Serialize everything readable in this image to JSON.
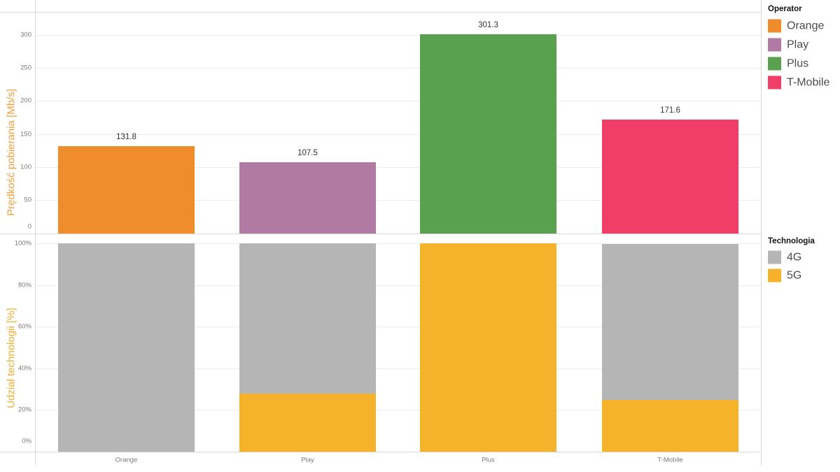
{
  "chart_data": [
    {
      "type": "bar",
      "panel": "top",
      "ylabel": "Prędkość pobierania [Mb/s]",
      "ylabel_color": "#f2a03c",
      "categories": [
        "Orange",
        "Play",
        "Plus",
        "T-Mobile"
      ],
      "values": [
        131.8,
        107.5,
        301.3,
        171.6
      ],
      "value_labels": [
        "131.8",
        "107.5",
        "301.3",
        "171.6"
      ],
      "bar_colors": [
        "#ef8c2c",
        "#b07aa2",
        "#59a14f",
        "#f13e68"
      ],
      "ylim": [
        0,
        300
      ],
      "ytick_values": [
        0,
        50,
        100,
        150,
        200,
        250,
        300
      ],
      "ytick_labels": [
        "0",
        "50",
        "100",
        "150",
        "200",
        "250",
        "300"
      ],
      "grid": true,
      "legend_position": "right"
    },
    {
      "type": "stacked-bar",
      "panel": "bottom",
      "ylabel": "Udział technologii [%]",
      "ylabel_color": "#eeae2f",
      "categories": [
        "Orange",
        "Play",
        "Plus",
        "T-Mobile"
      ],
      "series": [
        {
          "name": "5G",
          "color": "#f5b32c",
          "values": [
            0,
            28,
            100,
            25
          ]
        },
        {
          "name": "4G",
          "color": "#b5b5b5",
          "values": [
            100,
            72,
            0,
            75
          ]
        }
      ],
      "ylim": [
        0,
        100
      ],
      "ytick_values": [
        0,
        20,
        40,
        60,
        80,
        100
      ],
      "ytick_labels": [
        "0%",
        "20%",
        "40%",
        "60%",
        "80%",
        "100%"
      ],
      "grid": true,
      "legend_position": "right"
    }
  ],
  "legends": [
    {
      "title": "Operator",
      "items": [
        {
          "label": "Orange",
          "color": "#ef8c2c"
        },
        {
          "label": "Play",
          "color": "#b07aa2"
        },
        {
          "label": "Plus",
          "color": "#59a14f"
        },
        {
          "label": "T-Mobile",
          "color": "#f13e68"
        }
      ]
    },
    {
      "title": "Technologia",
      "items": [
        {
          "label": "4G",
          "color": "#b5b5b5"
        },
        {
          "label": "5G",
          "color": "#f5b32c"
        }
      ]
    }
  ],
  "colors": {
    "grid": "#ececec",
    "border": "#d6d6d6",
    "tick_text": "#7a7a7a",
    "value_text": "#333333",
    "legend_text": "#4d4d4d"
  }
}
